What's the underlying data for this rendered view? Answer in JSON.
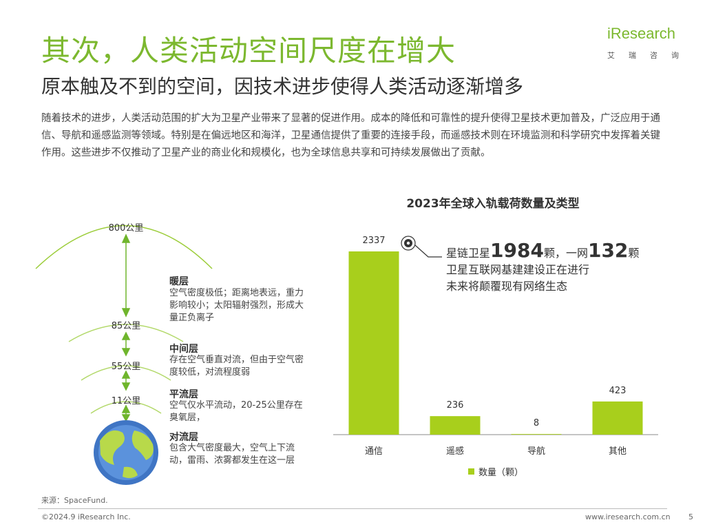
{
  "header": {
    "title": "其次，人类活动空间尺度在增大",
    "subtitle": "原本触及不到的空间，因技术进步使得人类活动逐渐增多",
    "intro": "随着技术的进步，人类活动范围的扩大为卫星产业带来了显著的促进作用。成本的降低和可靠性的提升使得卫星技术更加普及，广泛应用于通信、导航和遥感监测等领域。特别是在偏远地区和海洋，卫星通信提供了重要的连接手段，而遥感技术则在环境监测和科学研究中发挥着关键作用。这些进步不仅推动了卫星产业的商业化和规模化，也为全球信息共享和可持续发展做出了贡献。"
  },
  "logo": {
    "main": "iResearch",
    "chars": [
      "艾",
      "瑞",
      "咨",
      "询"
    ]
  },
  "atmosphere": {
    "altitudes": [
      "800公里",
      "85公里",
      "55公里",
      "11公里"
    ],
    "layers": [
      {
        "name": "暖层",
        "desc": "空气密度极低；距离地表远，重力影响较小；太阳辐射强烈，形成大量正负离子"
      },
      {
        "name": "中间层",
        "desc": "存在空气垂直对流，但由于空气密度较低，对流程度弱"
      },
      {
        "name": "平流层",
        "desc": "空气仅水平流动，20-25公里存在臭氧层，"
      },
      {
        "name": "对流层",
        "desc": "包含大气密度最大，空气上下流动，雷雨、浓雾都发生在这一层"
      }
    ]
  },
  "callout": {
    "line1_a": "星链卫星",
    "line1_num1": "1984",
    "line1_b": "颗，一网",
    "line1_num2": "132",
    "line1_c": "颗",
    "line2": "卫星互联网基建建设正在进行",
    "line3": "未来将颠覆现有网络生态"
  },
  "colors": {
    "accent": "#7cb82f",
    "bar": "#a8cf1c",
    "earth_blue": "#3f75c4",
    "earth_green": "#b8d94a"
  },
  "chart_data": {
    "type": "bar",
    "title": "2023年全球入轨载荷数量及类型",
    "categories": [
      "通信",
      "遥感",
      "导航",
      "其他"
    ],
    "series": [
      {
        "name": "数量（颗）",
        "values": [
          2337,
          236,
          8,
          423
        ]
      }
    ],
    "ylim": [
      0,
      2337
    ],
    "legend": "bottom",
    "grid": false
  },
  "footer": {
    "source": "来源：SpaceFund.",
    "copyright": "©2024.9 iResearch Inc.",
    "site": "www.iresearch.com.cn",
    "page": "5"
  }
}
